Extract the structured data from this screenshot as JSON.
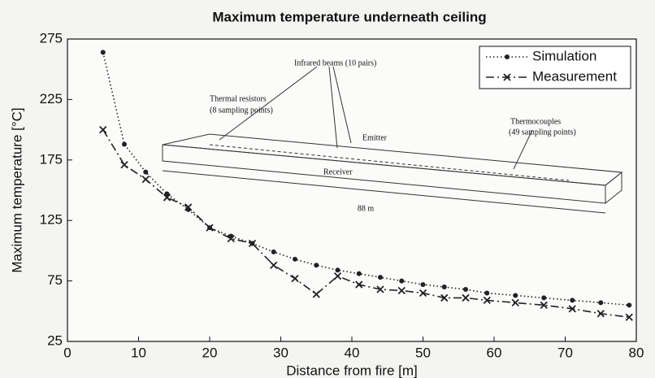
{
  "chart_data": {
    "type": "line",
    "title": "Maximum temperature underneath ceiling",
    "xlabel": "Distance from fire [m]",
    "ylabel": "Maximum temperature [°C]",
    "x": [
      5,
      8,
      11,
      14,
      17,
      20,
      23,
      26,
      29,
      32,
      35,
      38,
      41,
      44,
      47,
      50,
      53,
      56,
      59,
      63,
      67,
      71,
      75,
      79
    ],
    "series": [
      {
        "name": "Simulation",
        "color": "#222222",
        "linestyle": "dotted",
        "marker": "dot",
        "values": [
          264,
          188,
          165,
          147,
          134,
          119,
          112,
          106,
          99,
          93,
          88,
          84,
          81,
          78,
          75,
          72,
          70,
          68,
          65,
          63,
          61,
          59,
          57,
          55
        ]
      },
      {
        "name": "Measurement",
        "color": "#222222",
        "linestyle": "dashdot",
        "marker": "x",
        "values": [
          200,
          171,
          159,
          144,
          136,
          119,
          110,
          106,
          88,
          77,
          64,
          79,
          72,
          68,
          67,
          65,
          61,
          61,
          59,
          57,
          55,
          52,
          48,
          45
        ]
      }
    ],
    "xlim": [
      0,
      80
    ],
    "xticks": [
      0,
      10,
      20,
      30,
      40,
      50,
      60,
      70,
      80
    ],
    "ylim": [
      25,
      275
    ],
    "yticks": [
      25,
      75,
      125,
      175,
      225,
      275
    ],
    "grid": false,
    "legend": "upper right",
    "annotations": [
      "Thermal resistors",
      "(8 sampling points)",
      "Infrared beams (10 pairs)",
      "Emitter",
      "Receiver",
      "Thermocouples",
      "(49 sampling points)",
      "88 m"
    ]
  }
}
